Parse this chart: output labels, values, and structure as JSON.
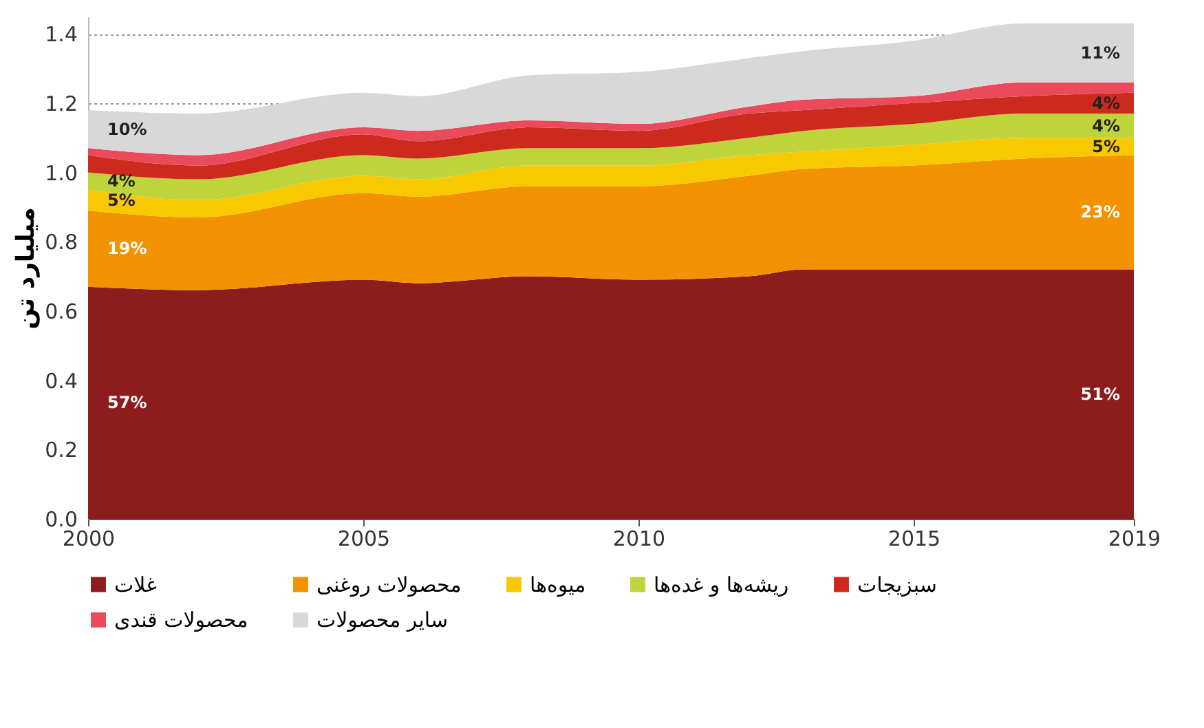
{
  "chart_data": {
    "type": "area",
    "stacked": true,
    "ylabel": "میلیارد تن",
    "x": [
      2000,
      2002,
      2005,
      2006,
      2008,
      2010,
      2012,
      2013,
      2015,
      2017,
      2019
    ],
    "series": [
      {
        "name": "غلات",
        "color": "#8e1c1c",
        "values": [
          0.67,
          0.66,
          0.69,
          0.68,
          0.7,
          0.69,
          0.7,
          0.72,
          0.72,
          0.72,
          0.72
        ]
      },
      {
        "name": "محصولات روغنی",
        "color": "#f39200",
        "values": [
          0.22,
          0.21,
          0.25,
          0.25,
          0.26,
          0.27,
          0.29,
          0.29,
          0.3,
          0.32,
          0.33
        ]
      },
      {
        "name": "میوه‌ها",
        "color": "#f8c900",
        "values": [
          0.06,
          0.05,
          0.05,
          0.05,
          0.06,
          0.06,
          0.06,
          0.05,
          0.06,
          0.06,
          0.05
        ]
      },
      {
        "name": "ریشه‌ها و غده‌ها",
        "color": "#bfd43a",
        "values": [
          0.05,
          0.06,
          0.06,
          0.06,
          0.05,
          0.05,
          0.05,
          0.06,
          0.06,
          0.07,
          0.07
        ]
      },
      {
        "name": "سبزیجات",
        "color": "#cc2a1c",
        "values": [
          0.05,
          0.04,
          0.06,
          0.05,
          0.06,
          0.05,
          0.07,
          0.06,
          0.06,
          0.05,
          0.06
        ]
      },
      {
        "name": "محصولات قندی",
        "color": "#eb4a5a",
        "values": [
          0.02,
          0.03,
          0.02,
          0.03,
          0.02,
          0.02,
          0.02,
          0.03,
          0.02,
          0.04,
          0.03
        ]
      },
      {
        "name": "سایر محصولات",
        "color": "#d8d8d8",
        "values": [
          0.11,
          0.12,
          0.1,
          0.1,
          0.13,
          0.15,
          0.14,
          0.14,
          0.16,
          0.17,
          0.17
        ]
      }
    ],
    "xlim": [
      2000,
      2019
    ],
    "xticks": [
      2000,
      2005,
      2010,
      2015,
      2019
    ],
    "ylim": [
      0,
      1.45
    ],
    "yticks": [
      {
        "value": 0,
        "label": "0.0"
      },
      {
        "value": 0.2,
        "label": "0.2"
      },
      {
        "value": 0.4,
        "label": "0.4"
      },
      {
        "value": 0.6,
        "label": "0.6"
      },
      {
        "value": 0.8,
        "label": "0.8"
      },
      {
        "value": 1.0,
        "label": "1.0"
      },
      {
        "value": 1.2,
        "label": "1.2"
      },
      {
        "value": 1.4,
        "label": "1.4"
      }
    ],
    "grid": "y",
    "legend": "bottom",
    "annotations": [
      "57%",
      "19%",
      "5%",
      "4%",
      "10%",
      "51%",
      "23%",
      "5%",
      "4%",
      "4%",
      "11%"
    ]
  }
}
